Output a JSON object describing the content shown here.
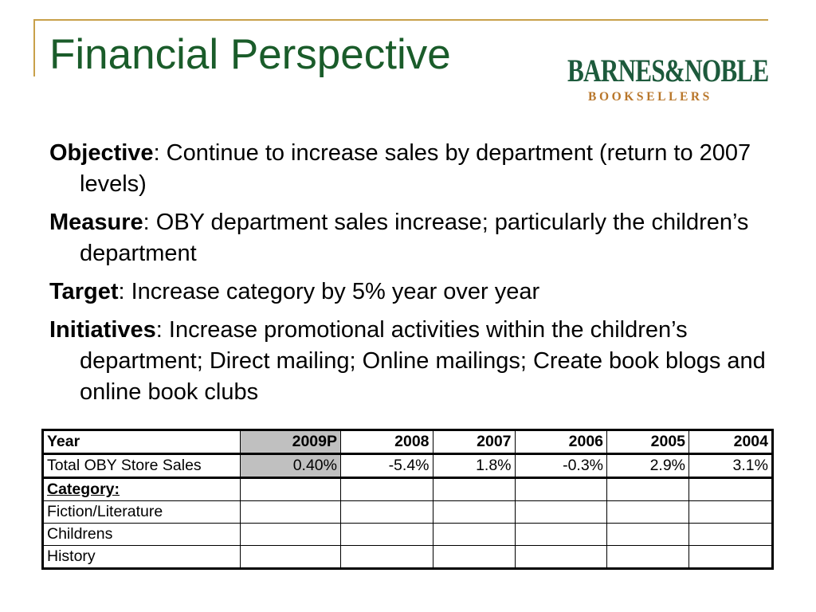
{
  "slide": {
    "title": "Financial Perspective"
  },
  "logo": {
    "main": "BARNES&NOBLE",
    "sub": "BOOKSELLERS",
    "colors": {
      "main": "#1d5a3c",
      "sub": "#b8762a"
    }
  },
  "bullets": [
    {
      "term": "Objective",
      "text": ": Continue to increase sales by department (return to 2007 levels)"
    },
    {
      "term": "Measure",
      "text": ": OBY department sales increase; particularly the children’s department"
    },
    {
      "term": "Target",
      "text": ": Increase category by 5% year over year"
    },
    {
      "term": "Initiatives",
      "text": ": Increase promotional activities within the children’s department; Direct mailing; Online mailings; Create book blogs and online book clubs"
    }
  ],
  "table": {
    "headers": [
      "Year",
      "2009P",
      "2008",
      "2007",
      "2006",
      "2005",
      "2004"
    ],
    "total_row": [
      "Total OBY Store Sales",
      "0.40%",
      "-5.4%",
      "1.8%",
      "-0.3%",
      "2.9%",
      "3.1%"
    ],
    "category_label": "Category:",
    "categories": [
      "Fiction/Literature",
      "Childrens",
      "History"
    ]
  },
  "colors": {
    "title": "#1a5c2a",
    "frame": "#c8a04a",
    "highlight": "#c0c0c0"
  }
}
